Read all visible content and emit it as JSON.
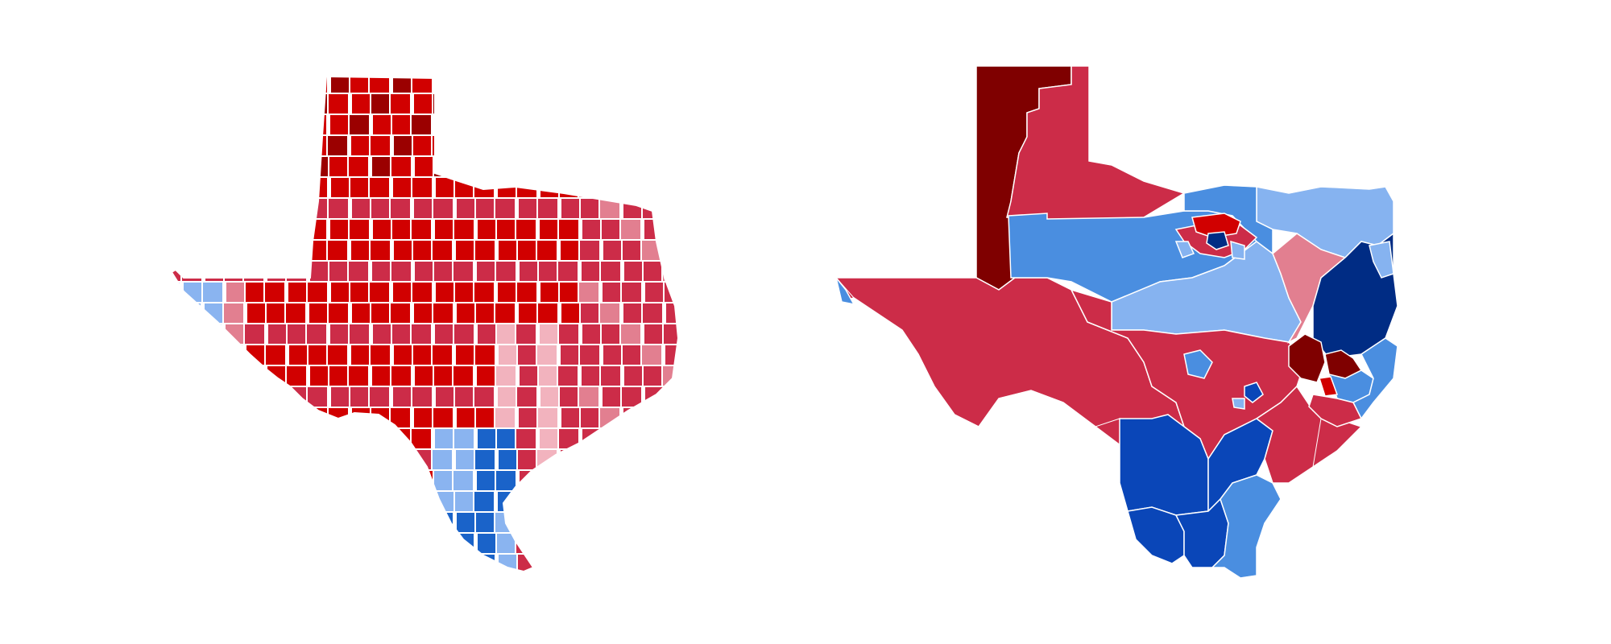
{
  "maps": [
    {
      "id": "county-map",
      "kind": "choropleth-counties",
      "region": "Texas",
      "palette": {
        "safe_dark_red": "#9b0000",
        "strong_red": "#d10000",
        "lean_red": "#cc2c48",
        "tilt_red": "#e27f90",
        "light_red": "#f2b3be",
        "light_blue": "#8ab4f0",
        "mid_blue": "#4a8ee0",
        "strong_blue": "#1a63c9"
      }
    },
    {
      "id": "district-map",
      "kind": "choropleth-districts",
      "region": "Texas",
      "palette": {
        "darkest_red": "#7f0000",
        "red": "#cc2c48",
        "bright_red": "#d10000",
        "pink": "#e27f90",
        "light_blue": "#86b3f0",
        "mid_blue": "#4a8ee0",
        "deep_blue": "#0a46b8",
        "navy": "#002c84"
      }
    }
  ]
}
